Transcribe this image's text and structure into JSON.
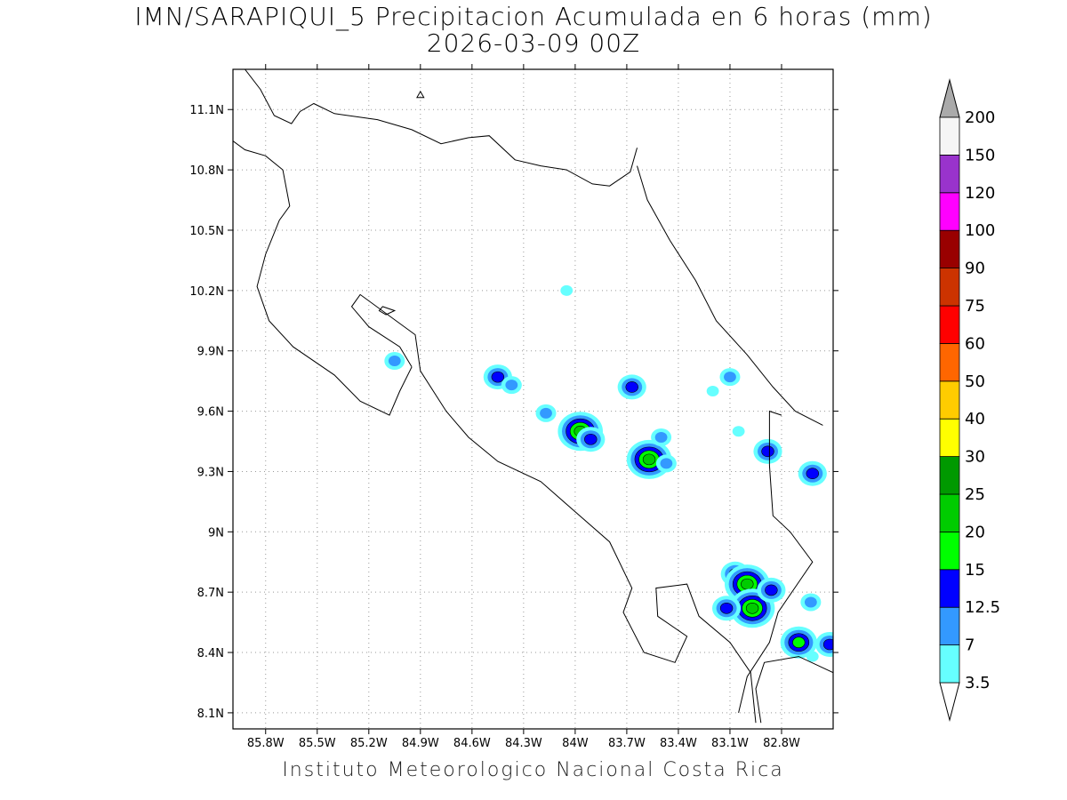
{
  "title": {
    "line1": "IMN/SARAPIQUI_5 Precipitacion Acumulada en 6 horas (mm)",
    "line2": "2026-03-09 00Z"
  },
  "footer": "Instituto Meteorologico Nacional Costa Rica",
  "axes": {
    "lon_labels": [
      "85.8W",
      "85.5W",
      "85.2W",
      "84.9W",
      "84.6W",
      "84.3W",
      "84W",
      "83.7W",
      "83.4W",
      "83.1W",
      "82.8W"
    ],
    "lon_values": [
      -85.8,
      -85.5,
      -85.2,
      -84.9,
      -84.6,
      -84.3,
      -84.0,
      -83.7,
      -83.4,
      -83.1,
      -82.8
    ],
    "lat_labels": [
      "11.1N",
      "10.8N",
      "10.5N",
      "10.2N",
      "9.9N",
      "9.6N",
      "9.3N",
      "9N",
      "8.7N",
      "8.4N",
      "8.1N"
    ],
    "lat_values": [
      11.1,
      10.8,
      10.5,
      10.2,
      9.9,
      9.6,
      9.3,
      9.0,
      8.7,
      8.4,
      8.1
    ],
    "lon_range": [
      -85.99,
      -82.5
    ],
    "lat_range": [
      8.02,
      11.3
    ],
    "grid": true
  },
  "colorbar": {
    "levels": [
      "3.5",
      "7",
      "12.5",
      "15",
      "20",
      "25",
      "30",
      "40",
      "50",
      "60",
      "75",
      "90",
      "100",
      "120",
      "150",
      "200"
    ],
    "colors": [
      "#66ffff",
      "#3399ff",
      "#0000ff",
      "#00ff00",
      "#00cc00",
      "#009900",
      "#ffff00",
      "#ffcc00",
      "#ff6600",
      "#ff0000",
      "#cc3300",
      "#990000",
      "#ff00ff",
      "#9933cc",
      "#f5f5f5"
    ],
    "under_color": "#ffffff",
    "over_color": "#aaaaaa"
  },
  "precip_blobs": [
    {
      "lon": -84.05,
      "lat": 10.2,
      "level": 1
    },
    {
      "lon": -85.05,
      "lat": 9.85,
      "level": 2
    },
    {
      "lon": -84.45,
      "lat": 9.77,
      "level": 3
    },
    {
      "lon": -84.37,
      "lat": 9.73,
      "level": 2
    },
    {
      "lon": -84.17,
      "lat": 9.59,
      "level": 2
    },
    {
      "lon": -83.97,
      "lat": 9.5,
      "level": 5
    },
    {
      "lon": -83.91,
      "lat": 9.46,
      "level": 3
    },
    {
      "lon": -83.57,
      "lat": 9.36,
      "level": 5
    },
    {
      "lon": -83.5,
      "lat": 9.47,
      "level": 2
    },
    {
      "lon": -83.47,
      "lat": 9.34,
      "level": 2
    },
    {
      "lon": -83.67,
      "lat": 9.72,
      "level": 3
    },
    {
      "lon": -83.1,
      "lat": 9.77,
      "level": 2
    },
    {
      "lon": -82.88,
      "lat": 9.4,
      "level": 3
    },
    {
      "lon": -82.62,
      "lat": 9.29,
      "level": 3
    },
    {
      "lon": -83.07,
      "lat": 8.79,
      "level": 3
    },
    {
      "lon": -83.0,
      "lat": 8.74,
      "level": 5
    },
    {
      "lon": -82.97,
      "lat": 8.62,
      "level": 5
    },
    {
      "lon": -82.86,
      "lat": 8.71,
      "level": 3
    },
    {
      "lon": -83.12,
      "lat": 8.62,
      "level": 3
    },
    {
      "lon": -82.7,
      "lat": 8.45,
      "level": 4
    },
    {
      "lon": -82.63,
      "lat": 8.65,
      "level": 2
    },
    {
      "lon": -82.52,
      "lat": 8.44,
      "level": 3
    },
    {
      "lon": -82.62,
      "lat": 8.38,
      "level": 1
    },
    {
      "lon": -83.2,
      "lat": 9.7,
      "level": 1
    },
    {
      "lon": -83.05,
      "lat": 9.5,
      "level": 1
    }
  ],
  "coastline": [
    [
      [
        -85.92,
        11.3
      ],
      [
        -85.83,
        11.2
      ],
      [
        -85.75,
        11.07
      ],
      [
        -85.65,
        11.03
      ],
      [
        -85.6,
        11.09
      ],
      [
        -85.52,
        11.13
      ],
      [
        -85.4,
        11.08
      ],
      [
        -85.15,
        11.05
      ],
      [
        -84.95,
        11.0
      ],
      [
        -84.78,
        10.93
      ],
      [
        -84.62,
        10.96
      ],
      [
        -84.5,
        10.97
      ],
      [
        -84.35,
        10.85
      ],
      [
        -84.2,
        10.82
      ],
      [
        -84.05,
        10.8
      ],
      [
        -83.9,
        10.73
      ],
      [
        -83.8,
        10.72
      ],
      [
        -83.68,
        10.79
      ],
      [
        -83.64,
        10.91
      ]
    ],
    [
      [
        -83.64,
        10.82
      ],
      [
        -83.58,
        10.65
      ],
      [
        -83.45,
        10.45
      ],
      [
        -83.3,
        10.25
      ],
      [
        -83.18,
        10.05
      ],
      [
        -83.0,
        9.88
      ],
      [
        -82.85,
        9.72
      ],
      [
        -82.72,
        9.6
      ],
      [
        -82.56,
        9.53
      ]
    ],
    [
      [
        -86.0,
        10.95
      ],
      [
        -85.92,
        10.9
      ],
      [
        -85.8,
        10.87
      ],
      [
        -85.7,
        10.8
      ],
      [
        -85.66,
        10.62
      ],
      [
        -85.72,
        10.55
      ],
      [
        -85.8,
        10.38
      ],
      [
        -85.85,
        10.22
      ],
      [
        -85.78,
        10.05
      ],
      [
        -85.64,
        9.92
      ],
      [
        -85.4,
        9.78
      ],
      [
        -85.25,
        9.65
      ],
      [
        -85.08,
        9.58
      ],
      [
        -85.02,
        9.7
      ],
      [
        -84.95,
        9.82
      ]
    ],
    [
      [
        -84.95,
        9.82
      ],
      [
        -85.02,
        9.92
      ],
      [
        -85.2,
        10.02
      ],
      [
        -85.3,
        10.12
      ],
      [
        -85.25,
        10.18
      ],
      [
        -84.93,
        9.98
      ],
      [
        -84.9,
        9.8
      ],
      [
        -84.75,
        9.6
      ],
      [
        -84.62,
        9.47
      ],
      [
        -84.45,
        9.35
      ],
      [
        -84.2,
        9.25
      ],
      [
        -84.0,
        9.1
      ],
      [
        -83.8,
        8.95
      ],
      [
        -83.67,
        8.72
      ],
      [
        -83.72,
        8.6
      ],
      [
        -83.6,
        8.4
      ],
      [
        -83.42,
        8.35
      ],
      [
        -83.35,
        8.48
      ],
      [
        -83.52,
        8.58
      ],
      [
        -83.53,
        8.72
      ],
      [
        -83.35,
        8.74
      ],
      [
        -83.28,
        8.58
      ],
      [
        -83.1,
        8.45
      ],
      [
        -82.98,
        8.3
      ],
      [
        -82.95,
        8.05
      ]
    ],
    [
      [
        -82.92,
        8.05
      ],
      [
        -82.95,
        8.22
      ],
      [
        -82.9,
        8.35
      ],
      [
        -82.7,
        8.38
      ],
      [
        -82.5,
        8.3
      ]
    ],
    [
      [
        -82.8,
        9.58
      ],
      [
        -82.87,
        9.6
      ],
      [
        -82.87,
        9.33
      ],
      [
        -82.85,
        9.08
      ],
      [
        -82.75,
        9.0
      ],
      [
        -82.62,
        8.85
      ],
      [
        -82.7,
        8.75
      ],
      [
        -82.82,
        8.6
      ],
      [
        -82.87,
        8.45
      ],
      [
        -83.0,
        8.28
      ],
      [
        -83.05,
        8.1
      ]
    ]
  ],
  "islands": [
    [
      [
        -85.12,
        10.12
      ],
      [
        -85.05,
        10.1
      ],
      [
        -85.1,
        10.08
      ],
      [
        -85.14,
        10.1
      ],
      [
        -85.12,
        10.12
      ]
    ],
    [
      [
        -84.9,
        11.19
      ],
      [
        -84.88,
        11.16
      ],
      [
        -84.92,
        11.16
      ],
      [
        -84.9,
        11.19
      ]
    ]
  ]
}
